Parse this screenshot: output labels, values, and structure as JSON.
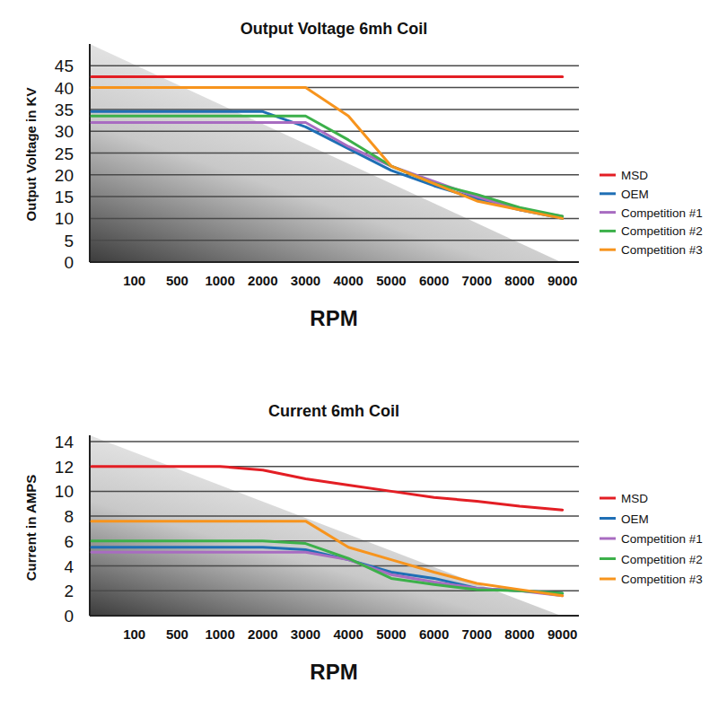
{
  "chart_data": [
    {
      "type": "line",
      "title": "Output Voltage 6mh Coil",
      "xlabel": "RPM",
      "ylabel": "Output Voltage in KV",
      "categories": [
        null,
        "100",
        "500",
        "1000",
        "2000",
        "3000",
        "4000",
        "5000",
        "6000",
        "7000",
        "8000",
        "9000"
      ],
      "ylim": [
        0,
        50
      ],
      "yticks": [
        0,
        5,
        10,
        15,
        20,
        25,
        30,
        35,
        40,
        45
      ],
      "grid": true,
      "legend": "right",
      "series": [
        {
          "name": "MSD",
          "color": "#e31e24",
          "values": [
            42.5,
            42.5,
            42.5,
            42.5,
            42.5,
            42.5,
            42.5,
            42.5,
            42.5,
            42.5,
            42.5,
            42.5
          ]
        },
        {
          "name": "OEM",
          "color": "#1f6fb5",
          "values": [
            34.5,
            34.5,
            34.5,
            34.5,
            34.5,
            31,
            26,
            21,
            17.5,
            14.5,
            12,
            10
          ]
        },
        {
          "name": "Competition #1",
          "color": "#a86cc1",
          "values": [
            32,
            32,
            32,
            32,
            32,
            32,
            26.5,
            22,
            18.5,
            15,
            12,
            10.5
          ]
        },
        {
          "name": "Competition #2",
          "color": "#3cb04a",
          "values": [
            33.5,
            33.5,
            33.5,
            33.5,
            33.5,
            33.5,
            28,
            22,
            18,
            15.5,
            12.5,
            10.5
          ]
        },
        {
          "name": "Competition #3",
          "color": "#f7941d",
          "values": [
            40,
            40,
            40,
            40,
            40,
            40,
            33.5,
            22,
            18,
            14,
            12,
            10
          ]
        }
      ]
    },
    {
      "type": "line",
      "title": "Current 6mh Coil",
      "xlabel": "RPM",
      "ylabel": "Current in AMPS",
      "categories": [
        null,
        "100",
        "500",
        "1000",
        "2000",
        "3000",
        "4000",
        "5000",
        "6000",
        "7000",
        "8000",
        "9000"
      ],
      "ylim": [
        0,
        14.5
      ],
      "yticks": [
        0,
        2,
        4,
        6,
        8,
        10,
        12,
        14
      ],
      "grid": true,
      "legend": "right",
      "series": [
        {
          "name": "MSD",
          "color": "#e31e24",
          "values": [
            12,
            12,
            12,
            12,
            11.7,
            11,
            10.5,
            10,
            9.5,
            9.2,
            8.8,
            8.5
          ]
        },
        {
          "name": "OEM",
          "color": "#1f6fb5",
          "values": [
            5.5,
            5.5,
            5.5,
            5.5,
            5.5,
            5.3,
            4.5,
            3.5,
            3,
            2.2,
            2,
            1.8
          ]
        },
        {
          "name": "Competition #1",
          "color": "#a86cc1",
          "values": [
            5.1,
            5.1,
            5.1,
            5.1,
            5.1,
            5.1,
            4.5,
            3.3,
            2.7,
            2.2,
            2,
            1.6
          ]
        },
        {
          "name": "Competition #2",
          "color": "#3cb04a",
          "values": [
            6,
            6,
            6,
            6,
            6,
            5.8,
            4.6,
            3,
            2.5,
            2.1,
            2,
            1.8
          ]
        },
        {
          "name": "Competition #3",
          "color": "#f7941d",
          "values": [
            7.6,
            7.6,
            7.6,
            7.6,
            7.6,
            7.6,
            5.5,
            4.5,
            3.5,
            2.6,
            2.1,
            1.6
          ]
        }
      ]
    }
  ]
}
